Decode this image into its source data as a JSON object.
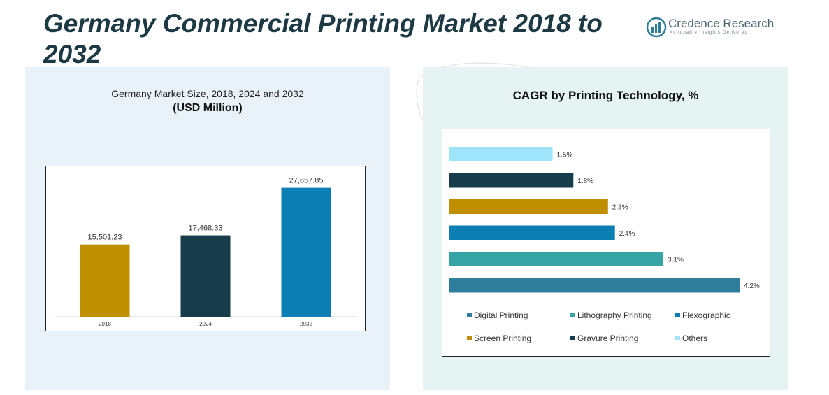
{
  "title": "Germany Commercial Printing Market 2018 to 2032",
  "logo": {
    "name": "Credence Research",
    "tagline": "Actionable Insights Delivered"
  },
  "left_panel": {
    "subtitle": "Germany Market Size, 2018, 2024 and 2032",
    "unit_label": "(USD Million)"
  },
  "right_panel": {
    "title": "CAGR by Printing Technology, %"
  },
  "colors": {
    "digital": "#2e7d9a",
    "lithography": "#36a4a4",
    "flexographic": "#0b7fb4",
    "screen": "#c08f00",
    "gravure": "#173c4a",
    "others": "#9ee4fb"
  },
  "chart_data": [
    {
      "type": "bar",
      "categories": [
        "2018",
        "2024",
        "2032"
      ],
      "values": [
        15501.23,
        17468.33,
        27657.85
      ],
      "value_labels": [
        "15,501.23",
        "17,468.33",
        "27,657.85"
      ],
      "colors": [
        "#c08f00",
        "#173c4a",
        "#0b7fb4"
      ],
      "ylim": [
        0,
        30000
      ],
      "grid": false
    },
    {
      "type": "bar",
      "orientation": "horizontal",
      "categories": [
        "Others",
        "Gravure Printing",
        "Screen Printing",
        "Flexographic",
        "Lithography Printing",
        "Digital Printing"
      ],
      "values": [
        1.5,
        1.8,
        2.3,
        2.4,
        3.1,
        4.2
      ],
      "value_labels": [
        "1.5%",
        "1.8%",
        "2.3%",
        "2.4%",
        "3.1%",
        "4.2%"
      ],
      "colors": [
        "#9ee4fb",
        "#173c4a",
        "#c08f00",
        "#0b7fb4",
        "#36a4a4",
        "#2e7d9a"
      ],
      "xlim": [
        0,
        4.5
      ],
      "grid": false,
      "legend_position": "bottom",
      "legend": [
        {
          "label": "Digital Printing",
          "color": "#2e7d9a"
        },
        {
          "label": "Lithography Printing",
          "color": "#36a4a4"
        },
        {
          "label": "Flexographic",
          "color": "#0b7fb4"
        },
        {
          "label": "Screen Printing",
          "color": "#c08f00"
        },
        {
          "label": "Gravure Printing",
          "color": "#173c4a"
        },
        {
          "label": "Others",
          "color": "#9ee4fb"
        }
      ]
    }
  ]
}
